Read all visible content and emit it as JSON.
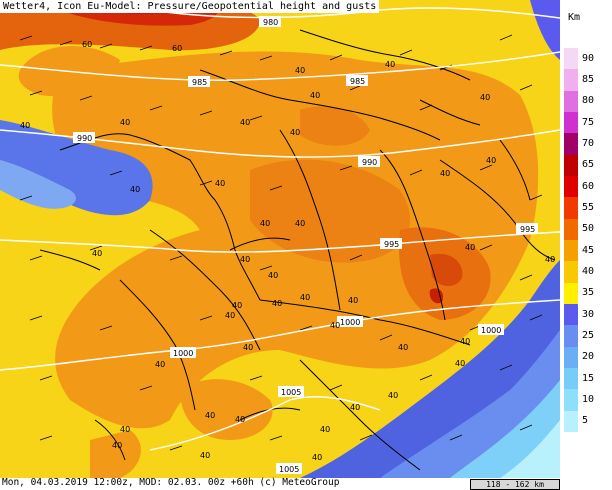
{
  "title": "Wetter4, Icon Eu-Model: Pressure/Geopotential height and gusts",
  "footer": {
    "info": "Mon, 04.03.2019 12:00z, MOD: 02.03. 00z +60h (c) MeteoGroup",
    "scale": "118 - 162 km"
  },
  "legend": {
    "unit": "Km",
    "levels": [
      {
        "label": "90",
        "color": "#f4d8f4"
      },
      {
        "label": "85",
        "color": "#f0b0f0"
      },
      {
        "label": "80",
        "color": "#e070e0"
      },
      {
        "label": "75",
        "color": "#d030d0"
      },
      {
        "label": "70",
        "color": "#a00068"
      },
      {
        "label": "65",
        "color": "#c00000"
      },
      {
        "label": "60",
        "color": "#e00000"
      },
      {
        "label": "55",
        "color": "#f03a00"
      },
      {
        "label": "50",
        "color": "#f06a00"
      },
      {
        "label": "45",
        "color": "#f5a000"
      },
      {
        "label": "40",
        "color": "#f8c800"
      },
      {
        "label": "35",
        "color": "#fff000"
      },
      {
        "label": "30",
        "color": "#5a5aef"
      },
      {
        "label": "25",
        "color": "#6a8ef0"
      },
      {
        "label": "20",
        "color": "#6aaff4"
      },
      {
        "label": "15",
        "color": "#78cdf8"
      },
      {
        "label": "10",
        "color": "#8ee0fa"
      },
      {
        "label": "5",
        "color": "#b8f0fc"
      }
    ]
  },
  "isobars": [
    "980",
    "985",
    "985",
    "990",
    "990",
    "995",
    "995",
    "1000",
    "1000",
    "1000",
    "1005",
    "1005"
  ],
  "gust_labels": [
    "60",
    "60",
    "40",
    "40",
    "40",
    "40",
    "40",
    "40",
    "40",
    "40",
    "40",
    "40",
    "40",
    "40",
    "40",
    "40",
    "40",
    "40",
    "40",
    "40",
    "40",
    "40",
    "40",
    "40",
    "40",
    "40",
    "40",
    "40",
    "40",
    "40",
    "40",
    "40",
    "40",
    "40",
    "40",
    "40",
    "40",
    "40",
    "40",
    "40",
    "40"
  ],
  "colors": {
    "orange": "#f29a17",
    "dark_orange": "#e86a10",
    "yellow": "#f7d417",
    "blue": "#4f63e0",
    "light_blue": "#6f9af0",
    "cyan": "#7fd0f8",
    "red": "#d81e08",
    "magenta": "#a4004a"
  }
}
